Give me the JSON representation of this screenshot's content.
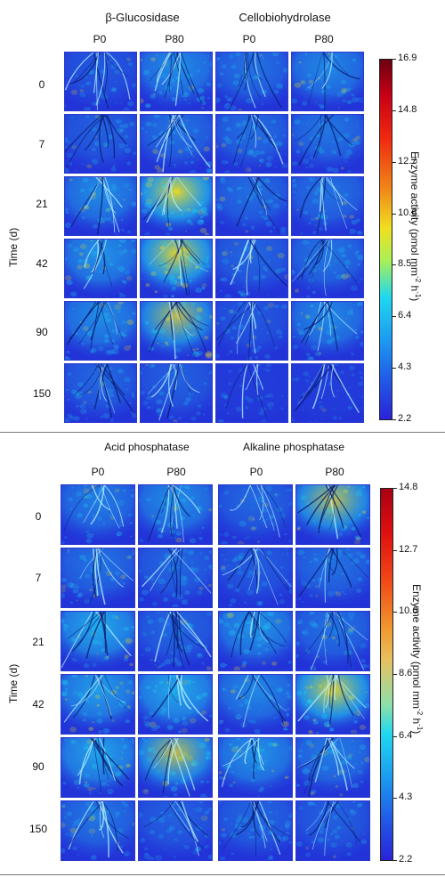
{
  "top_figure": {
    "headers": [
      "β-Glucosidase",
      "Cellobiohydrolase"
    ],
    "columns": [
      "P0",
      "P80",
      "P0",
      "P80"
    ],
    "rows": [
      "0",
      "7",
      "21",
      "42",
      "90",
      "150"
    ],
    "time_axis_label": "Time (d)",
    "colorbar": {
      "label": "Enzyme activity (pmol mm",
      "label_sup1": "-2",
      "label_mid": " h",
      "label_sup2": "-1",
      "label_end": ")",
      "ticks": [
        "16.9",
        "14.8",
        "12.7",
        "10.6",
        "8.5",
        "6.4",
        "4.3",
        "2.2"
      ]
    },
    "intensity": [
      [
        0.18,
        0.42,
        0.3,
        0.4
      ],
      [
        0.22,
        0.3,
        0.28,
        0.32
      ],
      [
        0.42,
        0.72,
        0.28,
        0.3
      ],
      [
        0.45,
        0.7,
        0.25,
        0.32
      ],
      [
        0.42,
        0.6,
        0.18,
        0.4
      ],
      [
        0.25,
        0.22,
        0.05,
        0.05
      ]
    ]
  },
  "bottom_figure": {
    "headers": [
      "Acid phosphatase",
      "Alkaline phosphatase"
    ],
    "columns": [
      "P0",
      "P80",
      "P0",
      "P80"
    ],
    "rows": [
      "0",
      "7",
      "21",
      "42",
      "90",
      "150"
    ],
    "time_axis_label": "Time (d)",
    "colorbar": {
      "label": "Enzyme activity (pmol mm",
      "label_sup1": "-2",
      "label_mid": " h",
      "label_sup2": "-1",
      "label_end": ")",
      "ticks": [
        "14.8",
        "12.7",
        "10.6",
        "8.6",
        "6.4",
        "4.3",
        "2.2"
      ]
    },
    "intensity": [
      [
        0.35,
        0.42,
        0.25,
        0.62
      ],
      [
        0.3,
        0.25,
        0.2,
        0.3
      ],
      [
        0.55,
        0.25,
        0.45,
        0.3
      ],
      [
        0.5,
        0.55,
        0.4,
        0.7
      ],
      [
        0.52,
        0.6,
        0.45,
        0.35
      ],
      [
        0.32,
        0.22,
        0.25,
        0.22
      ]
    ]
  },
  "colors": {
    "low": "#2233d8",
    "mid": "#20d8f0",
    "high": "#f0e020",
    "max": "#6a0010"
  }
}
